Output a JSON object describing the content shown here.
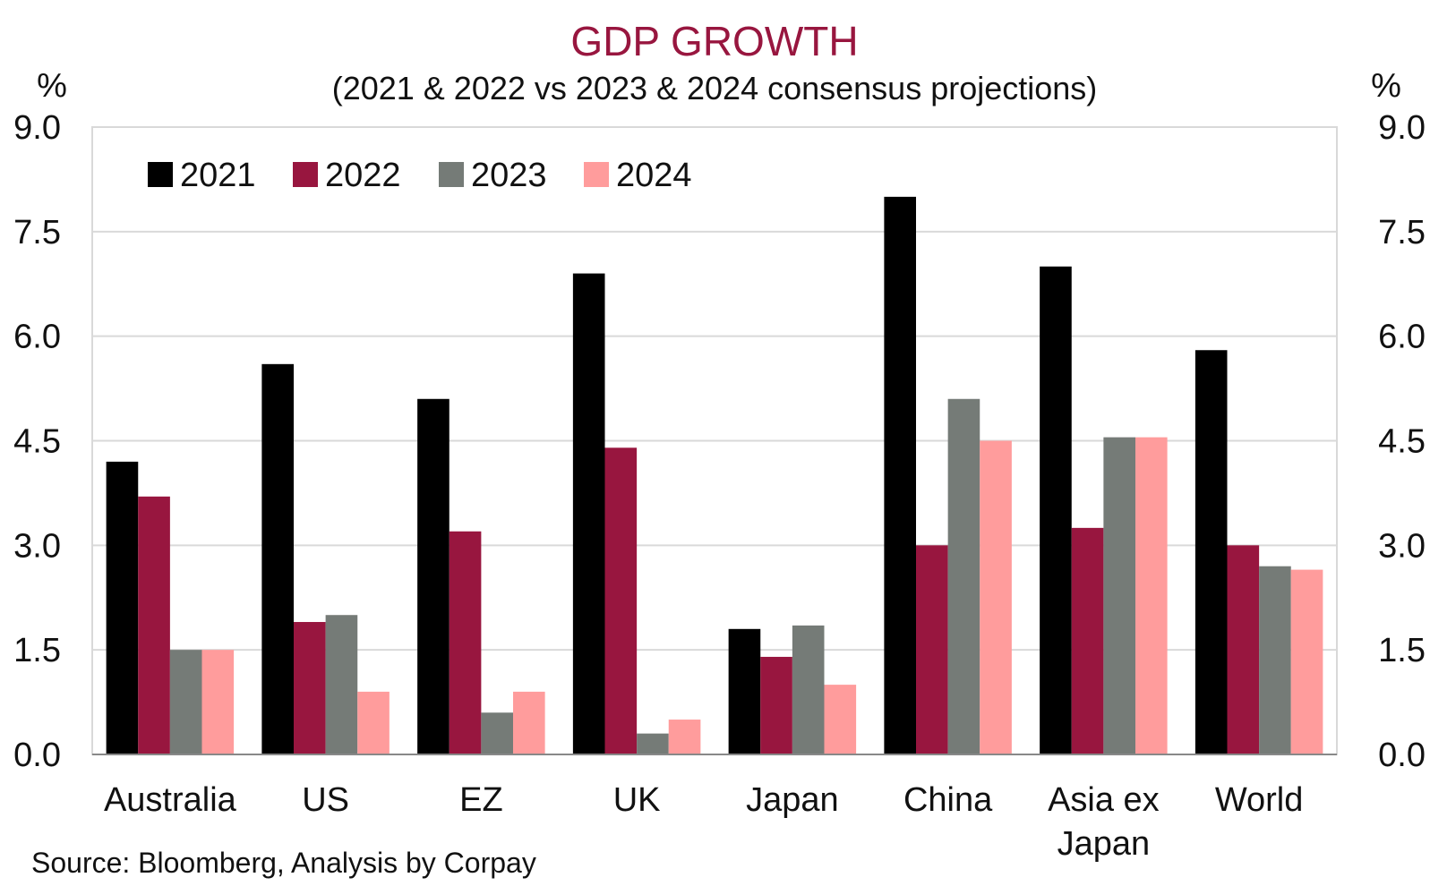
{
  "chart_data": {
    "type": "bar",
    "title": "GDP GROWTH",
    "subtitle": "(2021 & 2022 vs 2023 & 2024 consensus projections)",
    "ylabel_left": "%",
    "ylabel_right": "%",
    "ylim": [
      0,
      9
    ],
    "yticks": [
      "0.0",
      "1.5",
      "3.0",
      "4.5",
      "6.0",
      "7.5",
      "9.0"
    ],
    "grid": true,
    "legend_position": "top-left",
    "categories": [
      [
        "Australia"
      ],
      [
        "US"
      ],
      [
        "EZ"
      ],
      [
        "UK"
      ],
      [
        "Japan"
      ],
      [
        "China"
      ],
      [
        "Asia ex",
        "Japan"
      ],
      [
        "World"
      ]
    ],
    "series": [
      {
        "name": "2021",
        "color": "#000000",
        "values": [
          4.2,
          5.6,
          5.1,
          6.9,
          1.8,
          8.0,
          7.0,
          5.8
        ]
      },
      {
        "name": "2022",
        "color": "#98163f",
        "values": [
          3.7,
          1.9,
          3.2,
          4.4,
          1.4,
          3.0,
          3.25,
          3.0
        ]
      },
      {
        "name": "2023",
        "color": "#757b77",
        "values": [
          1.5,
          2.0,
          0.6,
          0.3,
          1.85,
          5.1,
          4.55,
          2.7
        ]
      },
      {
        "name": "2024",
        "color": "#ff9c9c",
        "values": [
          1.5,
          0.9,
          0.9,
          0.5,
          1.0,
          4.5,
          4.55,
          2.65
        ]
      }
    ],
    "source": "Source: Bloomberg, Analysis by Corpay"
  }
}
